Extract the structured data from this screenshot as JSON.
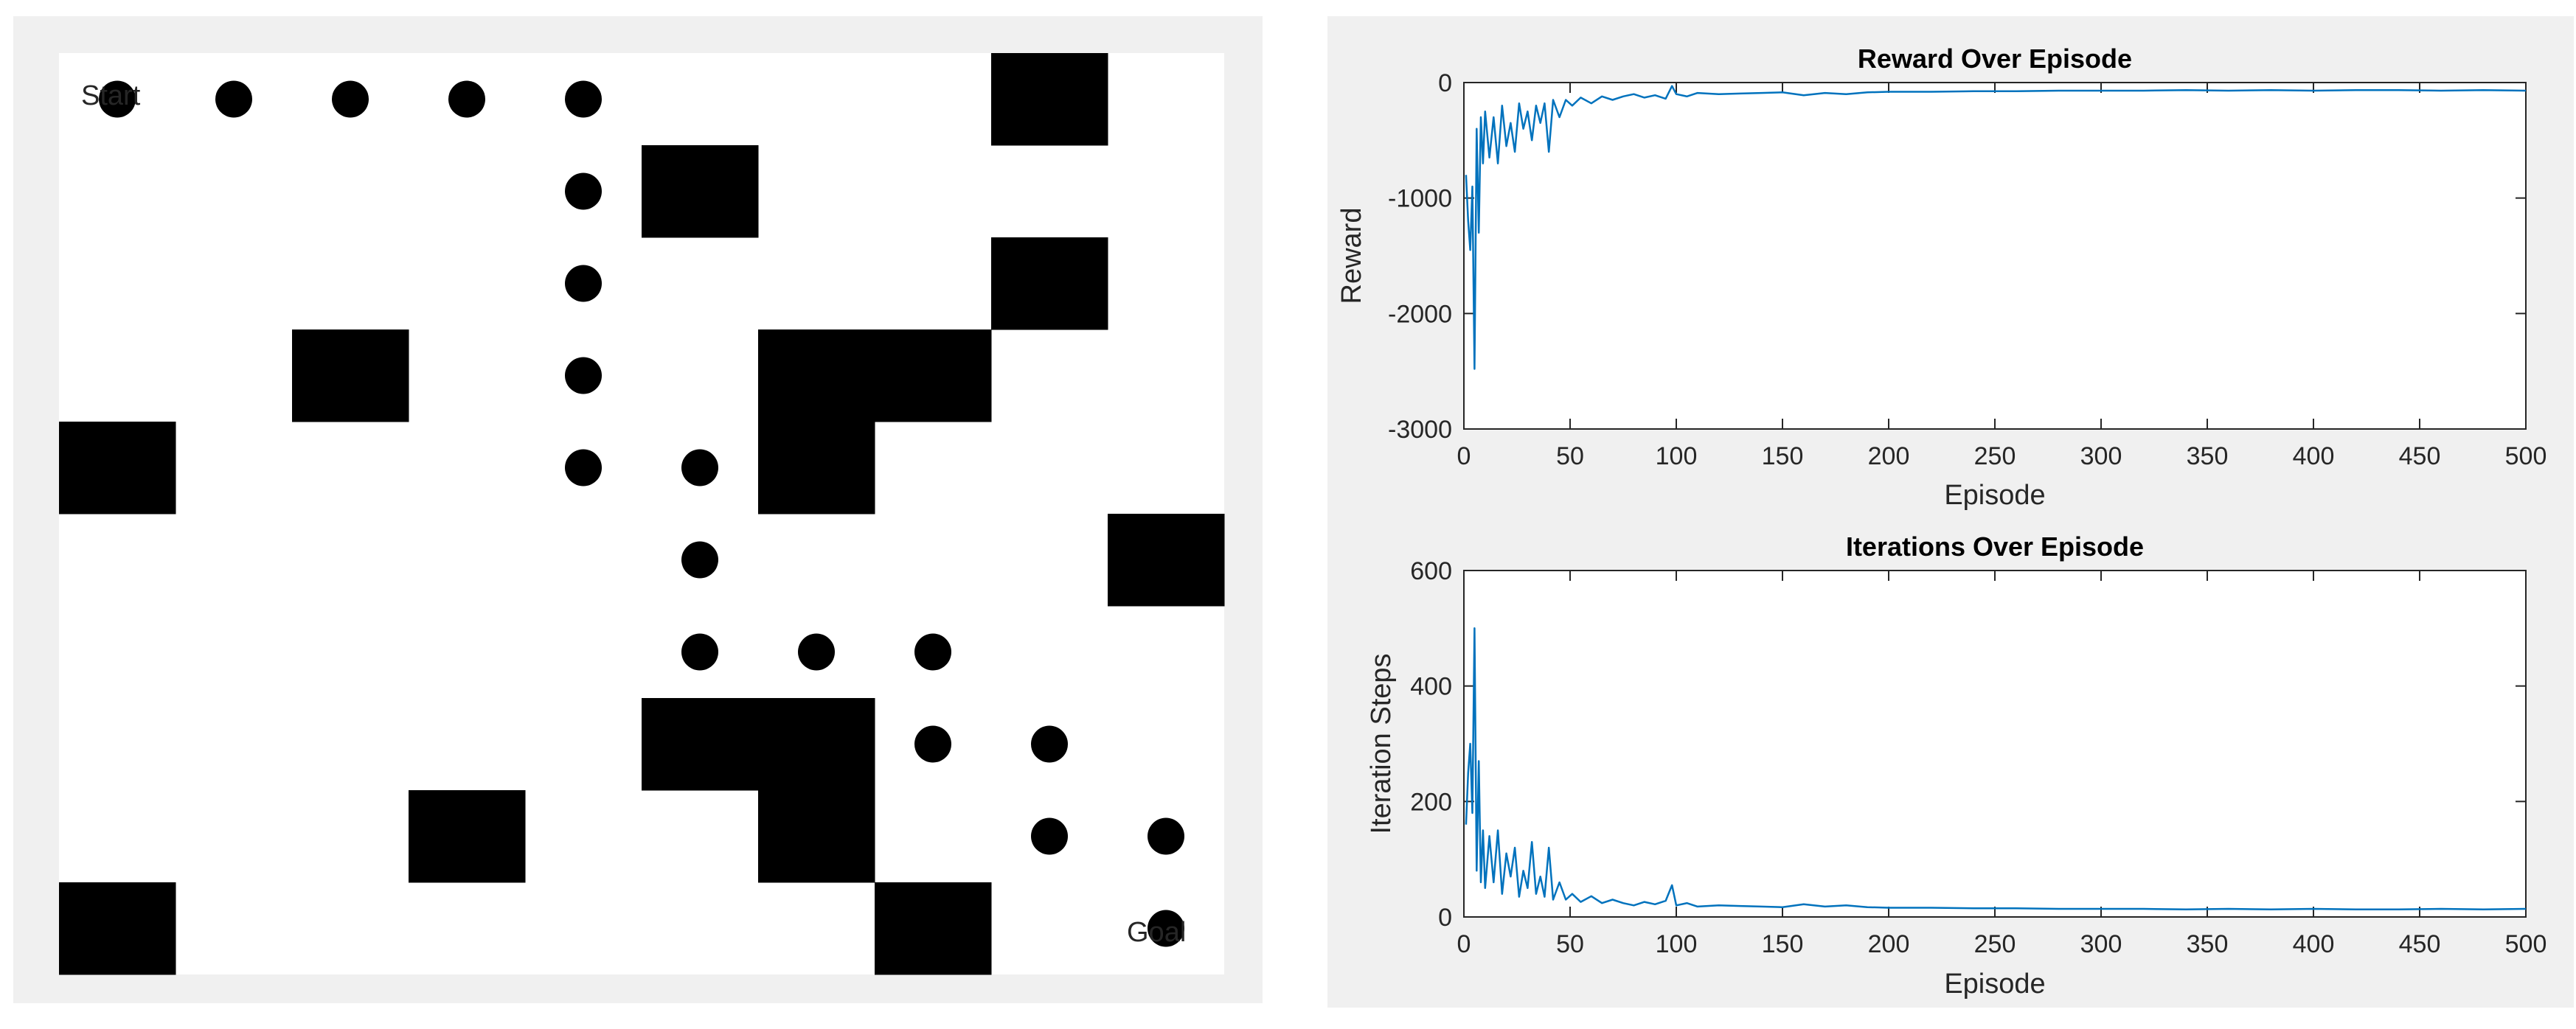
{
  "grid_world": {
    "start_label": "Start",
    "goal_label": "Goal",
    "rows": 10,
    "cols": 10,
    "obstacles": [
      [
        0,
        8
      ],
      [
        1,
        5
      ],
      [
        2,
        8
      ],
      [
        3,
        2
      ],
      [
        3,
        6
      ],
      [
        3,
        7
      ],
      [
        4,
        0
      ],
      [
        4,
        6
      ],
      [
        5,
        9
      ],
      [
        7,
        5
      ],
      [
        7,
        6
      ],
      [
        8,
        3
      ],
      [
        8,
        6
      ],
      [
        9,
        0
      ],
      [
        9,
        7
      ]
    ],
    "path": [
      [
        0,
        0
      ],
      [
        0,
        1
      ],
      [
        0,
        2
      ],
      [
        0,
        3
      ],
      [
        0,
        4
      ],
      [
        1,
        4
      ],
      [
        2,
        4
      ],
      [
        3,
        4
      ],
      [
        4,
        4
      ],
      [
        4,
        5
      ],
      [
        5,
        5
      ],
      [
        6,
        5
      ],
      [
        6,
        6
      ],
      [
        6,
        7
      ],
      [
        7,
        7
      ],
      [
        7,
        8
      ],
      [
        8,
        8
      ],
      [
        8,
        9
      ],
      [
        9,
        9
      ]
    ],
    "colors": {
      "obstacle": "#000000",
      "path": "#000000",
      "background": "#ffffff"
    }
  },
  "chart_data": [
    {
      "type": "line",
      "title": "Reward Over Episode",
      "xlabel": "Episode",
      "ylabel": "Reward",
      "xlim": [
        0,
        500
      ],
      "ylim": [
        -3000,
        0
      ],
      "xticks": [
        0,
        50,
        100,
        150,
        200,
        250,
        300,
        350,
        400,
        450,
        500
      ],
      "yticks": [
        -3000,
        -2000,
        -1000,
        0
      ],
      "grid": false,
      "color": "#0072bd",
      "series": [
        {
          "x": [
            1,
            2,
            3,
            4,
            5,
            6,
            7,
            8,
            9,
            10,
            12,
            14,
            16,
            18,
            20,
            22,
            24,
            26,
            28,
            30,
            32,
            34,
            36,
            38,
            40,
            42,
            45,
            48,
            51,
            55,
            60,
            65,
            70,
            75,
            80,
            85,
            90,
            95,
            98,
            100,
            105,
            110,
            120,
            130,
            140,
            150,
            160,
            170,
            180,
            190,
            200,
            220,
            240,
            260,
            280,
            300,
            320,
            340,
            360,
            380,
            400,
            420,
            440,
            460,
            480,
            500
          ],
          "y": [
            -800,
            -1200,
            -1450,
            -900,
            -2480,
            -400,
            -1300,
            -300,
            -700,
            -250,
            -650,
            -300,
            -700,
            -200,
            -550,
            -350,
            -600,
            -180,
            -400,
            -250,
            -500,
            -200,
            -350,
            -180,
            -600,
            -150,
            -300,
            -150,
            -200,
            -130,
            -180,
            -120,
            -150,
            -120,
            -100,
            -130,
            -110,
            -140,
            -30,
            -100,
            -120,
            -90,
            -100,
            -95,
            -90,
            -85,
            -110,
            -90,
            -100,
            -85,
            -80,
            -80,
            -75,
            -75,
            -70,
            -70,
            -70,
            -65,
            -70,
            -65,
            -70,
            -65,
            -65,
            -70,
            -65,
            -70
          ]
        }
      ]
    },
    {
      "type": "line",
      "title": "Iterations Over Episode",
      "xlabel": "Episode",
      "ylabel": "Iteration Steps",
      "xlim": [
        0,
        500
      ],
      "ylim": [
        0,
        600
      ],
      "xticks": [
        0,
        50,
        100,
        150,
        200,
        250,
        300,
        350,
        400,
        450,
        500
      ],
      "yticks": [
        0,
        200,
        400,
        600
      ],
      "grid": false,
      "color": "#0072bd",
      "series": [
        {
          "x": [
            1,
            2,
            3,
            4,
            5,
            6,
            7,
            8,
            9,
            10,
            12,
            14,
            16,
            18,
            20,
            22,
            24,
            26,
            28,
            30,
            32,
            34,
            36,
            38,
            40,
            42,
            45,
            48,
            51,
            55,
            60,
            65,
            70,
            75,
            80,
            85,
            90,
            95,
            98,
            100,
            105,
            110,
            120,
            130,
            140,
            150,
            160,
            170,
            180,
            190,
            200,
            220,
            240,
            260,
            280,
            300,
            320,
            340,
            360,
            380,
            400,
            420,
            440,
            460,
            480,
            500
          ],
          "y": [
            160,
            250,
            300,
            180,
            500,
            80,
            270,
            60,
            150,
            50,
            140,
            60,
            150,
            40,
            110,
            70,
            120,
            35,
            80,
            50,
            130,
            40,
            70,
            35,
            120,
            30,
            60,
            30,
            40,
            26,
            36,
            24,
            30,
            24,
            20,
            26,
            22,
            28,
            55,
            20,
            24,
            18,
            20,
            19,
            18,
            17,
            22,
            18,
            20,
            17,
            16,
            16,
            15,
            15,
            14,
            14,
            14,
            13,
            14,
            13,
            14,
            13,
            13,
            14,
            13,
            14
          ]
        }
      ]
    }
  ]
}
